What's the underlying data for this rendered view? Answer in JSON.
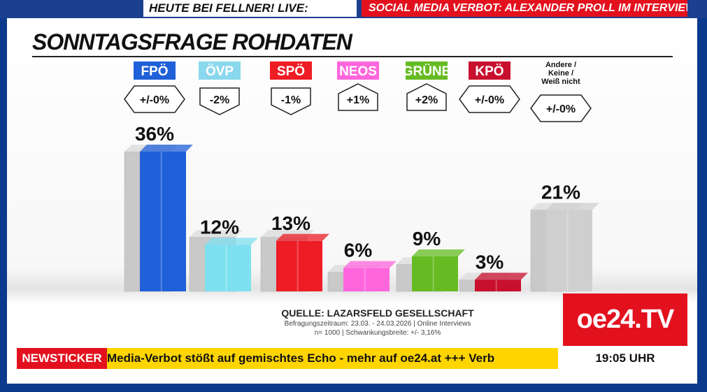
{
  "topbar": {
    "left_text": "HEUTE BEI FELLNER! LIVE:",
    "right_text": "SOCIAL MEDIA VERBOT: ALEXANDER PROLL IM INTERVIEW"
  },
  "title": "SONNTAGSFRAGE ROHDATEN",
  "colors": {
    "frame": "#0b3a8c",
    "brand_red": "#e3101e",
    "ticker_yellow": "#ffd500"
  },
  "chart_data": {
    "type": "bar",
    "categories": [
      "FPÖ",
      "ÖVP",
      "SPÖ",
      "NEOS",
      "GRÜNE",
      "KPÖ",
      "Andere / Keine / Weiß nicht"
    ],
    "values": [
      36,
      12,
      13,
      6,
      9,
      3,
      21
    ],
    "value_labels": [
      "36%",
      "12%",
      "13%",
      "6%",
      "9%",
      "3%",
      "21%"
    ],
    "changes": [
      "+/-0%",
      "-2%",
      "-1%",
      "+1%",
      "+2%",
      "+/-0%",
      "+/-0%"
    ],
    "previous_values": [
      36,
      14,
      14,
      5,
      7,
      3,
      21
    ],
    "colors": [
      "#1f5fd8",
      "#7ee0f0",
      "#ee1c24",
      "#ff66dd",
      "#66bb22",
      "#c8102e",
      "#cfcfcf"
    ],
    "label_colors": [
      "#1f5fd8",
      "#8ad8ee",
      "#ee1c24",
      "#ff66dd",
      "#66bb22",
      "#c8102e",
      ""
    ],
    "ylim": [
      0,
      40
    ],
    "grid": false
  },
  "source": {
    "line1": "QUELLE: LAZARSFELD GESELLSCHAFT",
    "line2": "Befragungszeitraum: 23.03. - 24.03.2026 | Online Interviews",
    "line3": "n= 1000 | Schwankungsbreite: +/- 3,16%"
  },
  "logo": "oe24.TV",
  "clock": "19:05 UHR",
  "ticker": {
    "label": "NEWSTICKER",
    "text": "Media-Verbot stößt auf gemischtes Echo - mehr auf oe24.at +++ Verb"
  }
}
